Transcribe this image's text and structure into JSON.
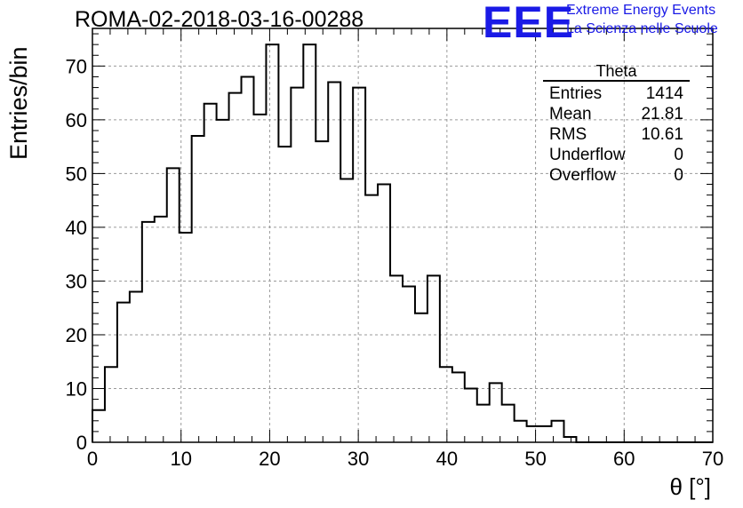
{
  "title": "ROMA-02-2018-03-16-00288",
  "brand": {
    "logo_text": "EEE",
    "line1": "Extreme Energy Events",
    "line2": "La Scienza nelle Scuole",
    "color": "#1a1ae6"
  },
  "stats": {
    "title": "Theta",
    "rows": [
      {
        "label": "Entries",
        "value": "1414"
      },
      {
        "label": "Mean",
        "value": "21.81"
      },
      {
        "label": "RMS",
        "value": "10.61"
      },
      {
        "label": "Underflow",
        "value": "0"
      },
      {
        "label": "Overflow",
        "value": "0"
      }
    ]
  },
  "chart_data": {
    "type": "bar",
    "style": "step-histogram",
    "title": "ROMA-02-2018-03-16-00288",
    "xlabel": "θ [°]",
    "ylabel": "Entries/bin",
    "xlim": [
      0,
      70
    ],
    "ylim": [
      0,
      77
    ],
    "grid": true,
    "bin_width": 1.4,
    "values": [
      6,
      14,
      26,
      28,
      41,
      42,
      51,
      39,
      57,
      63,
      60,
      65,
      68,
      61,
      74,
      55,
      66,
      74,
      56,
      67,
      49,
      66,
      46,
      48,
      31,
      29,
      24,
      31,
      14,
      13,
      10,
      7,
      11,
      7,
      4,
      3,
      3,
      4,
      1,
      0,
      0,
      0,
      0,
      0,
      0,
      0,
      0,
      0,
      0,
      0
    ],
    "x_ticks": [
      0,
      10,
      20,
      30,
      40,
      50,
      60,
      70
    ],
    "y_ticks": [
      0,
      10,
      20,
      30,
      40,
      50,
      60,
      70
    ]
  }
}
